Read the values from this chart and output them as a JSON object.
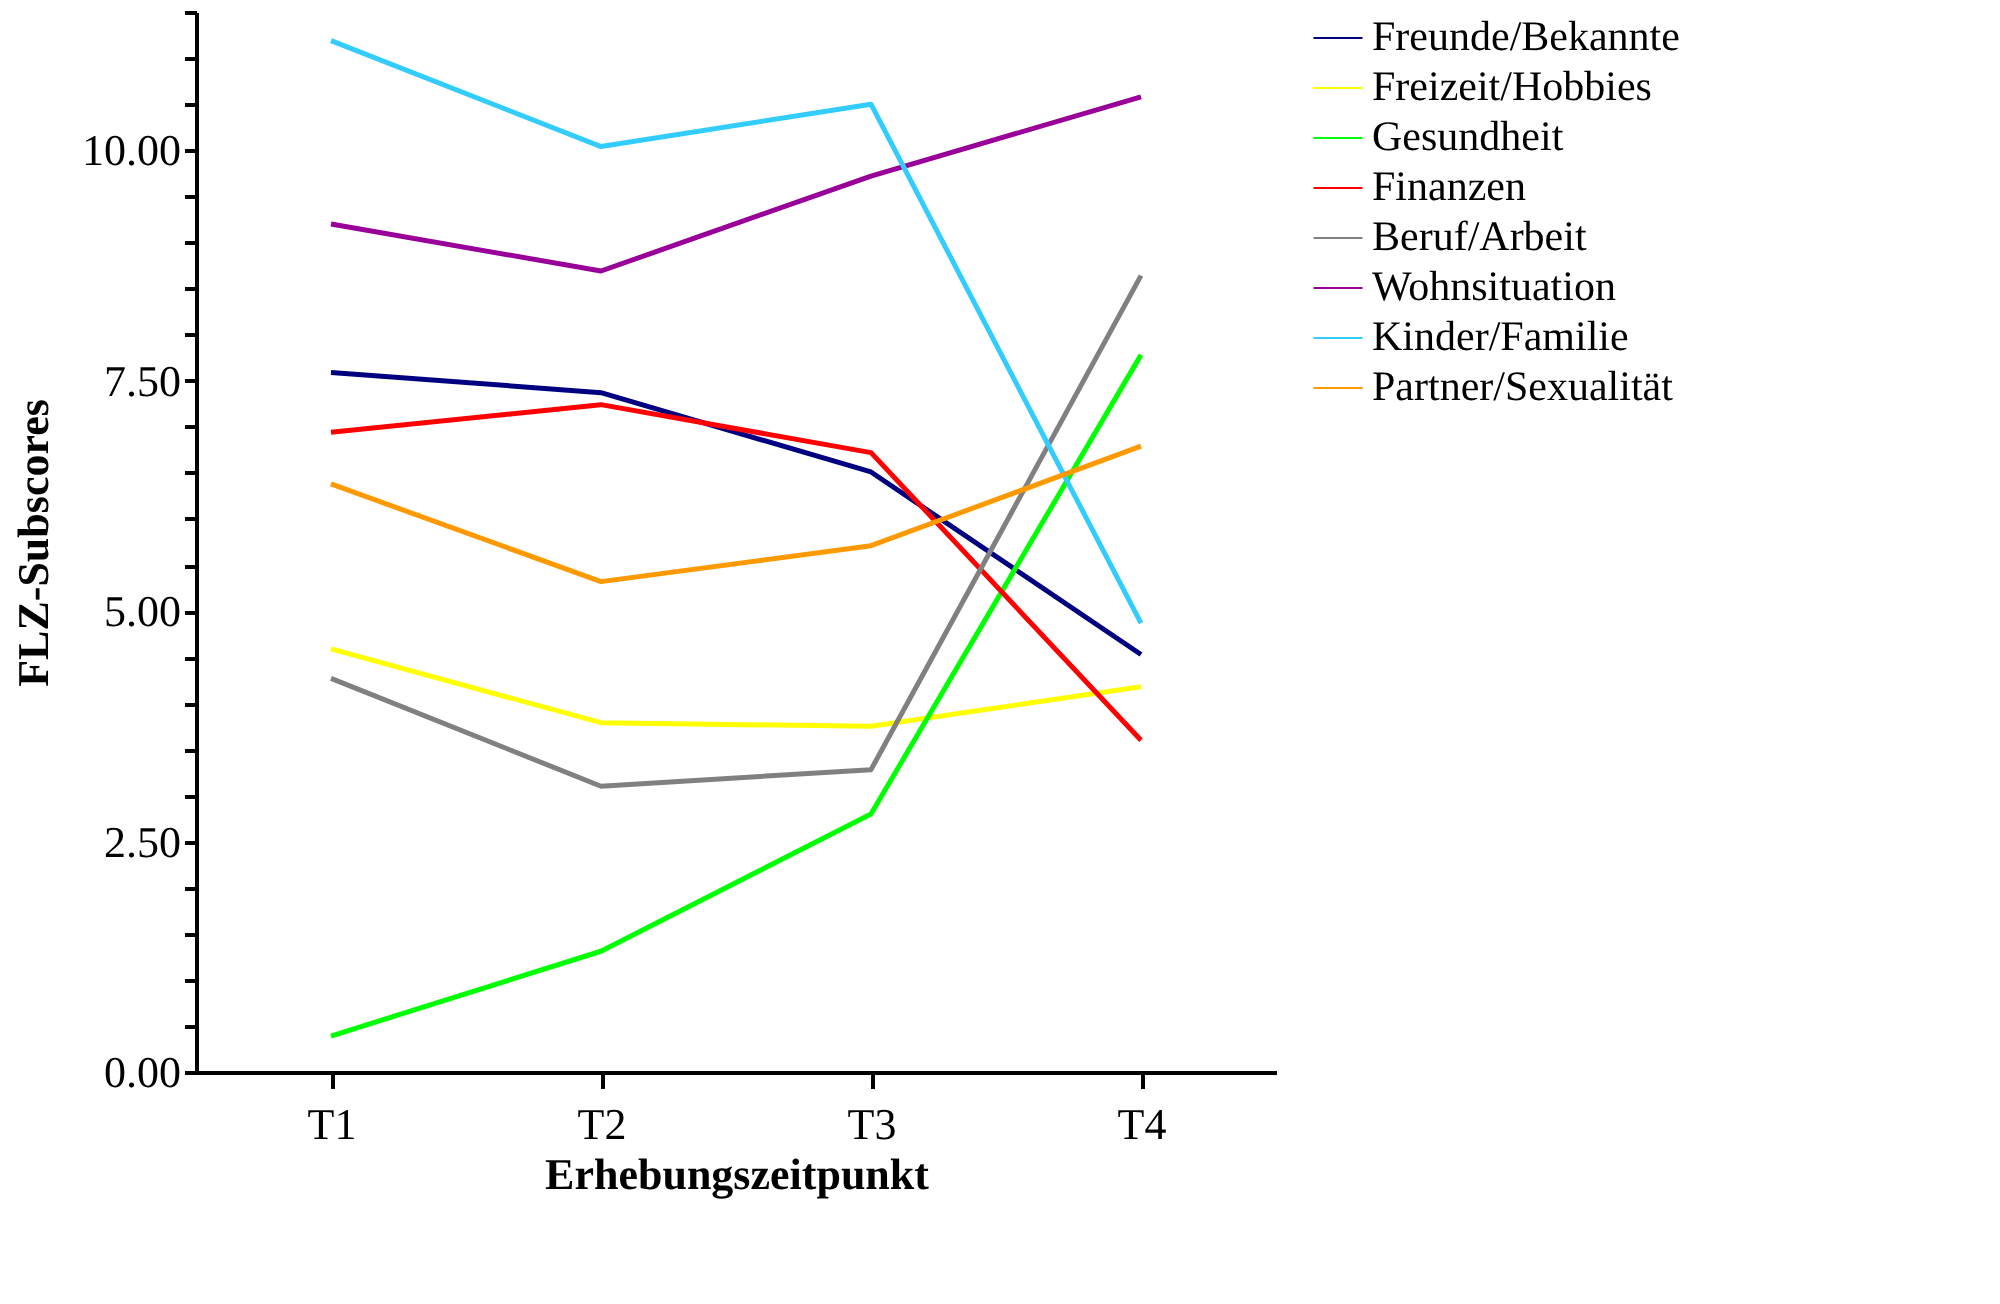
{
  "chart_data": {
    "type": "line",
    "xlabel": "Erhebungszeitpunkt",
    "ylabel": "FLZ-Subscores",
    "categories": [
      "T1",
      "T2",
      "T3",
      "T4"
    ],
    "series": [
      {
        "name": "Freunde/Bekannte",
        "color": "#000080",
        "values": [
          7.59,
          7.37,
          6.51,
          4.53
        ]
      },
      {
        "name": "Freizeit/Hobbies",
        "color": "#ffff00",
        "values": [
          4.59,
          3.79,
          3.75,
          4.18
        ]
      },
      {
        "name": "Gesundheit",
        "color": "#00ff00",
        "values": [
          0.39,
          1.31,
          2.8,
          7.78
        ]
      },
      {
        "name": "Finanzen",
        "color": "#ff0000",
        "values": [
          6.94,
          7.24,
          6.72,
          3.6
        ]
      },
      {
        "name": "Beruf/Arbeit",
        "color": "#808080",
        "values": [
          4.27,
          3.1,
          3.28,
          8.64
        ]
      },
      {
        "name": "Wohnsituation",
        "color": "#990099",
        "values": [
          9.2,
          8.69,
          9.72,
          10.58
        ]
      },
      {
        "name": "Kinder/Familie",
        "color": "#33ccff",
        "values": [
          11.19,
          10.04,
          10.5,
          4.87
        ]
      },
      {
        "name": "Partner/Sexualität",
        "color": "#ff9900",
        "values": [
          6.38,
          5.32,
          5.71,
          6.79
        ]
      }
    ],
    "ylim": [
      0,
      11.5
    ],
    "yticks": [
      {
        "value": 0,
        "label": "0.00"
      },
      {
        "value": 0.5,
        "label": null
      },
      {
        "value": 1,
        "label": null
      },
      {
        "value": 1.5,
        "label": null
      },
      {
        "value": 2,
        "label": null
      },
      {
        "value": 2.5,
        "label": "2.50"
      },
      {
        "value": 3,
        "label": null
      },
      {
        "value": 3.5,
        "label": null
      },
      {
        "value": 4,
        "label": null
      },
      {
        "value": 4.5,
        "label": null
      },
      {
        "value": 5,
        "label": "5.00"
      },
      {
        "value": 5.5,
        "label": null
      },
      {
        "value": 6,
        "label": null
      },
      {
        "value": 6.5,
        "label": null
      },
      {
        "value": 7,
        "label": null
      },
      {
        "value": 7.5,
        "label": "7.50"
      },
      {
        "value": 8,
        "label": null
      },
      {
        "value": 8.5,
        "label": null
      },
      {
        "value": 9,
        "label": null
      },
      {
        "value": 9.5,
        "label": null
      },
      {
        "value": 10,
        "label": "10.00"
      },
      {
        "value": 10.5,
        "label": null
      },
      {
        "value": 11,
        "label": null
      },
      {
        "value": 11.5,
        "label": null
      }
    ],
    "grid": false,
    "legend": "right",
    "marker": "none",
    "line_style": "solid"
  }
}
